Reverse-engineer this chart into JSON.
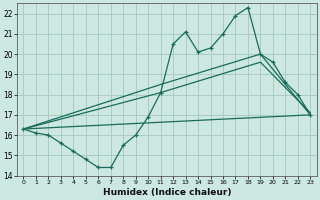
{
  "xlabel": "Humidex (Indice chaleur)",
  "bg_color": "#cce8e0",
  "grid_color": "#aaccC4",
  "line_color": "#1a6b5a",
  "xlim": [
    -0.5,
    23.5
  ],
  "ylim": [
    14,
    22.5
  ],
  "xticks": [
    0,
    1,
    2,
    3,
    4,
    5,
    6,
    7,
    8,
    9,
    10,
    11,
    12,
    13,
    14,
    15,
    16,
    17,
    18,
    19,
    20,
    21,
    22,
    23
  ],
  "yticks": [
    14,
    15,
    16,
    17,
    18,
    19,
    20,
    21,
    22
  ],
  "series1_x": [
    0,
    1,
    2,
    3,
    4,
    5,
    6,
    7,
    8,
    9,
    10,
    11,
    12,
    13,
    14,
    15,
    16,
    17,
    18,
    19,
    20,
    21,
    22,
    23
  ],
  "series1_y": [
    16.3,
    16.1,
    16.0,
    15.6,
    15.2,
    14.8,
    14.4,
    14.4,
    15.5,
    16.0,
    16.9,
    18.1,
    20.5,
    21.1,
    20.1,
    20.3,
    21.0,
    21.9,
    22.3,
    20.0,
    19.6,
    18.6,
    18.0,
    17.0
  ],
  "series2_x": [
    0,
    23
  ],
  "series2_y": [
    16.3,
    17.0
  ],
  "series3_x": [
    0,
    11,
    19,
    23
  ],
  "series3_y": [
    16.3,
    18.1,
    19.6,
    17.1
  ],
  "series4_x": [
    0,
    11,
    19,
    23
  ],
  "series4_y": [
    16.3,
    18.5,
    20.0,
    17.0
  ]
}
